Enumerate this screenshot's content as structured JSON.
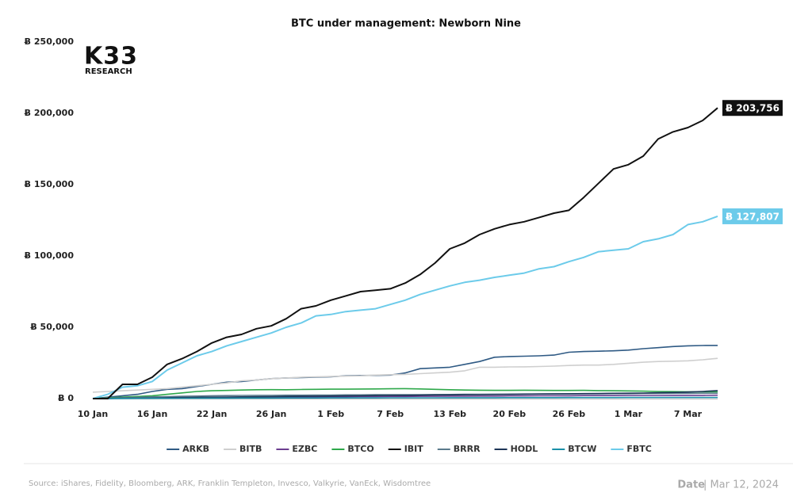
{
  "chart_data": {
    "type": "line",
    "title": "BTC under management: Newborn Nine",
    "categories": [
      "10 Jan",
      null,
      null,
      null,
      "16 Jan",
      null,
      null,
      null,
      "22 Jan",
      null,
      null,
      null,
      "26 Jan",
      null,
      null,
      null,
      "1 Feb",
      null,
      null,
      null,
      "7 Feb",
      null,
      null,
      null,
      "13 Feb",
      null,
      null,
      null,
      "20 Feb",
      null,
      null,
      null,
      "26 Feb",
      null,
      null,
      null,
      "1 Mar",
      null,
      null,
      null,
      "7 Mar",
      null,
      null
    ],
    "ylim": [
      0,
      250000
    ],
    "yticks": [
      {
        "value": 0,
        "label": "Ƀ 0"
      },
      {
        "value": 50000,
        "label": "Ƀ 50,000"
      },
      {
        "value": 100000,
        "label": "Ƀ 100,000"
      },
      {
        "value": 150000,
        "label": "Ƀ 150,000"
      },
      {
        "value": 200000,
        "label": "Ƀ 200,000"
      },
      {
        "value": 250000,
        "label": "Ƀ 250,000"
      }
    ],
    "grid": false,
    "series": [
      {
        "name": "ARKB",
        "color": "#2f5a84",
        "values": [
          0,
          1000,
          2000,
          3000,
          5000,
          6500,
          7000,
          8500,
          10000,
          11500,
          12000,
          13000,
          14000,
          14500,
          14700,
          15000,
          15300,
          16000,
          16200,
          16300,
          16500,
          18000,
          21000,
          21500,
          22000,
          24000,
          26000,
          29000,
          29500,
          29700,
          30000,
          30500,
          32500,
          33000,
          33200,
          33500,
          34000,
          35000,
          35700,
          36500,
          37000,
          37200,
          37300
        ]
      },
      {
        "name": "BITB",
        "color": "#cfcfcf",
        "values": [
          4500,
          5000,
          5500,
          6000,
          6500,
          7000,
          8000,
          9000,
          10000,
          11000,
          12500,
          13000,
          14000,
          14500,
          15000,
          15200,
          15500,
          15800,
          16000,
          16500,
          16800,
          17000,
          17500,
          18000,
          18500,
          19500,
          22000,
          22000,
          22200,
          22300,
          22500,
          22800,
          23200,
          23500,
          23500,
          24000,
          24800,
          25500,
          26000,
          26200,
          26500,
          27200,
          28200
        ]
      },
      {
        "name": "EZBC",
        "color": "#6b3d8f",
        "values": [
          0,
          100,
          200,
          300,
          400,
          500,
          600,
          700,
          800,
          900,
          1000,
          1000,
          1100,
          1100,
          1200,
          1200,
          1300,
          1300,
          1400,
          1400,
          1500,
          1500,
          1600,
          1600,
          1700,
          1700,
          1800,
          1800,
          1900,
          1900,
          2000,
          2000,
          2000,
          2100,
          2100,
          2100,
          2200,
          2200,
          2200,
          2300,
          2300,
          2300,
          2400
        ]
      },
      {
        "name": "BTCO",
        "color": "#2ea84a",
        "values": [
          0,
          500,
          1000,
          1500,
          2000,
          3000,
          4000,
          5000,
          5500,
          5700,
          6000,
          6200,
          6300,
          6200,
          6400,
          6500,
          6600,
          6600,
          6700,
          6800,
          6900,
          7000,
          6800,
          6500,
          6200,
          6000,
          5900,
          5800,
          5800,
          5900,
          5800,
          5700,
          5700,
          5800,
          5600,
          5500,
          5400,
          5200,
          5000,
          4900,
          4800,
          4800,
          4700
        ]
      },
      {
        "name": "IBIT",
        "color": "#111111",
        "values": [
          0,
          0,
          10000,
          10000,
          15000,
          24000,
          28000,
          33000,
          39000,
          43000,
          45000,
          49000,
          51000,
          56000,
          63000,
          65000,
          69000,
          72000,
          75000,
          76000,
          77000,
          81000,
          87000,
          95000,
          105000,
          109000,
          115000,
          119000,
          122000,
          124000,
          127000,
          130000,
          132000,
          141000,
          151000,
          161000,
          164000,
          170000,
          182000,
          187000,
          190000,
          195000,
          203756
        ],
        "value_labels": [
          null,
          null,
          null,
          null,
          null,
          null,
          null,
          null,
          null,
          null,
          null,
          null,
          null,
          null,
          null,
          null,
          null,
          null,
          null,
          null,
          null,
          null,
          null,
          null,
          null,
          null,
          null,
          null,
          null,
          null,
          null,
          null,
          null,
          null,
          null,
          null,
          null,
          null,
          null,
          null,
          null,
          null,
          "Ƀ 203,756"
        ]
      },
      {
        "name": "BRRR",
        "color": "#5a7a8c",
        "values": [
          0,
          300,
          600,
          900,
          1200,
          1400,
          1600,
          1800,
          2000,
          2100,
          2200,
          2300,
          2300,
          2400,
          2400,
          2500,
          2500,
          2600,
          2600,
          2700,
          2700,
          2800,
          2800,
          2900,
          2900,
          3000,
          3000,
          3100,
          3100,
          3200,
          3200,
          3300,
          3300,
          3400,
          3400,
          3500,
          3500,
          3600,
          3600,
          3700,
          3700,
          3800,
          3800
        ]
      },
      {
        "name": "HODL",
        "color": "#1d3557",
        "values": [
          0,
          100,
          200,
          300,
          400,
          600,
          800,
          900,
          1000,
          1100,
          1200,
          1300,
          1400,
          1500,
          1600,
          1700,
          1800,
          1900,
          2000,
          2100,
          2200,
          2300,
          2400,
          2500,
          2600,
          2700,
          2800,
          2900,
          3000,
          3100,
          3200,
          3300,
          3400,
          3500,
          3600,
          3700,
          3800,
          3900,
          4100,
          4300,
          4600,
          5000,
          5600
        ]
      },
      {
        "name": "BTCW",
        "color": "#1a8fa8",
        "values": [
          0,
          50,
          100,
          150,
          200,
          250,
          300,
          300,
          350,
          350,
          400,
          400,
          400,
          450,
          450,
          450,
          500,
          500,
          500,
          500,
          550,
          550,
          550,
          550,
          600,
          600,
          600,
          600,
          650,
          650,
          650,
          650,
          700,
          700,
          700,
          700,
          750,
          750,
          750,
          800,
          800,
          800,
          800
        ]
      },
      {
        "name": "FBTC",
        "color": "#6ccbea",
        "values": [
          0,
          3000,
          8000,
          9000,
          12000,
          20000,
          25000,
          30000,
          33000,
          37000,
          40000,
          43000,
          46000,
          50000,
          53000,
          58000,
          59000,
          61000,
          62000,
          63000,
          66000,
          69000,
          73000,
          76000,
          79000,
          81500,
          83000,
          85000,
          86500,
          88000,
          91000,
          92500,
          96000,
          99000,
          103000,
          104000,
          105000,
          110000,
          112000,
          115000,
          122000,
          124000,
          127807
        ],
        "value_labels": [
          null,
          null,
          null,
          null,
          null,
          null,
          null,
          null,
          null,
          null,
          null,
          null,
          null,
          null,
          null,
          null,
          null,
          null,
          null,
          null,
          null,
          null,
          null,
          null,
          null,
          null,
          null,
          null,
          null,
          null,
          null,
          null,
          null,
          null,
          null,
          null,
          null,
          null,
          null,
          null,
          null,
          null,
          "Ƀ 127,807"
        ]
      }
    ]
  },
  "logo": {
    "name": "K33",
    "subtitle": "RESEARCH"
  },
  "footer": {
    "source": "Source:  iShares, Fidelity, Bloomberg, ARK, Franklin Templeton, Invesco, Valkyrie, VanEck, Wisdomtree",
    "date_label": "Date",
    "date": "| Mar 12, 2024"
  }
}
